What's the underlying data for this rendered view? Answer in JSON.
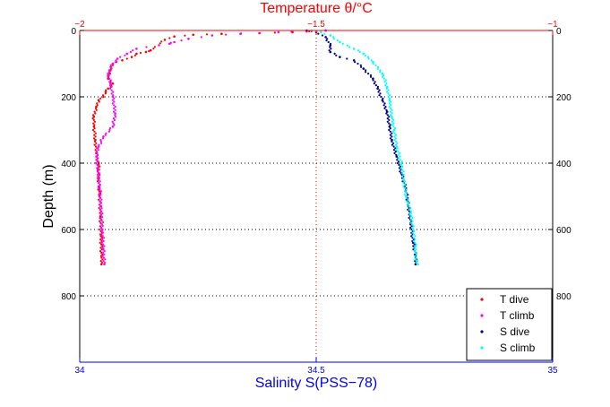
{
  "chart_data": {
    "type": "scatter",
    "title": "",
    "top_axis": {
      "label": "Temperature θ/°C",
      "range": [
        -2,
        -1
      ],
      "ticks": [
        -2,
        -1.5,
        -1
      ],
      "tick_labels": [
        "−2",
        "−1.5",
        "−1"
      ],
      "color": "#ff0000"
    },
    "bottom_axis": {
      "label": "Salinity S(PSS−78)",
      "range": [
        34,
        35
      ],
      "ticks": [
        34,
        34.5,
        35
      ],
      "tick_labels": [
        "34",
        "34.5",
        "35"
      ],
      "color": "#0000ff"
    },
    "y_axis": {
      "label": "Depth (m)",
      "range": [
        0,
        1000
      ],
      "reversed": true,
      "ticks": [
        0,
        200,
        400,
        600,
        800
      ],
      "tick_labels": [
        "0",
        "200",
        "400",
        "600",
        "800"
      ],
      "right_tick_labels": [
        "0",
        "200",
        "400",
        "600",
        "800"
      ]
    },
    "grid": true,
    "legend_position": "bottom-right",
    "series": [
      {
        "name": "T dive",
        "axis": "top",
        "color": "#ff0000",
        "points": [
          [
            -1.48,
            0
          ],
          [
            -1.55,
            5
          ],
          [
            -1.62,
            8
          ],
          [
            -1.7,
            10
          ],
          [
            -1.76,
            13
          ],
          [
            -1.8,
            18
          ],
          [
            -1.82,
            28
          ],
          [
            -1.85,
            60
          ],
          [
            -1.86,
            65
          ],
          [
            -1.88,
            70
          ],
          [
            -1.89,
            80
          ],
          [
            -1.91,
            90
          ],
          [
            -1.93,
            100
          ],
          [
            -1.935,
            120
          ],
          [
            -1.94,
            145
          ],
          [
            -1.93,
            160
          ],
          [
            -1.94,
            175
          ],
          [
            -1.945,
            185
          ],
          [
            -1.95,
            200
          ],
          [
            -1.96,
            210
          ],
          [
            -1.965,
            230
          ],
          [
            -1.97,
            260
          ],
          [
            -1.97,
            290
          ],
          [
            -1.967,
            330
          ],
          [
            -1.965,
            370
          ],
          [
            -1.96,
            400
          ],
          [
            -1.96,
            450
          ],
          [
            -1.958,
            500
          ],
          [
            -1.956,
            560
          ],
          [
            -1.955,
            620
          ],
          [
            -1.954,
            680
          ],
          [
            -1.954,
            705
          ]
        ]
      },
      {
        "name": "T climb",
        "axis": "top",
        "color": "#ff00ff",
        "points": [
          [
            -1.48,
            0
          ],
          [
            -1.52,
            3
          ],
          [
            -1.58,
            5
          ],
          [
            -1.66,
            10
          ],
          [
            -1.72,
            15
          ],
          [
            -1.77,
            25
          ],
          [
            -1.8,
            35
          ],
          [
            -1.81,
            40
          ],
          [
            -1.88,
            55
          ],
          [
            -1.9,
            70
          ],
          [
            -1.92,
            85
          ],
          [
            -1.93,
            100
          ],
          [
            -1.94,
            130
          ],
          [
            -1.935,
            160
          ],
          [
            -1.93,
            200
          ],
          [
            -1.925,
            250
          ],
          [
            -1.93,
            290
          ],
          [
            -1.95,
            320
          ],
          [
            -1.96,
            350
          ],
          [
            -1.965,
            380
          ],
          [
            -1.962,
            420
          ],
          [
            -1.958,
            470
          ],
          [
            -1.955,
            530
          ],
          [
            -1.952,
            600
          ],
          [
            -1.95,
            660
          ],
          [
            -1.948,
            705
          ]
        ]
      },
      {
        "name": "S dive",
        "axis": "bottom",
        "color": "#00008b",
        "points": [
          [
            34.48,
            0
          ],
          [
            34.5,
            5
          ],
          [
            34.52,
            20
          ],
          [
            34.53,
            45
          ],
          [
            34.53,
            65
          ],
          [
            34.55,
            80
          ],
          [
            34.58,
            90
          ],
          [
            34.6,
            115
          ],
          [
            34.62,
            145
          ],
          [
            34.63,
            175
          ],
          [
            34.64,
            210
          ],
          [
            34.65,
            245
          ],
          [
            34.655,
            290
          ],
          [
            34.66,
            330
          ],
          [
            34.67,
            380
          ],
          [
            34.68,
            430
          ],
          [
            34.69,
            480
          ],
          [
            34.695,
            530
          ],
          [
            34.7,
            580
          ],
          [
            34.705,
            640
          ],
          [
            34.71,
            680
          ],
          [
            34.71,
            705
          ]
        ]
      },
      {
        "name": "S climb",
        "axis": "bottom",
        "color": "#00ffff",
        "points": [
          [
            34.49,
            0
          ],
          [
            34.51,
            5
          ],
          [
            34.53,
            15
          ],
          [
            34.55,
            35
          ],
          [
            34.58,
            55
          ],
          [
            34.6,
            70
          ],
          [
            34.62,
            95
          ],
          [
            34.64,
            130
          ],
          [
            34.65,
            170
          ],
          [
            34.655,
            210
          ],
          [
            34.66,
            260
          ],
          [
            34.665,
            300
          ],
          [
            34.67,
            350
          ],
          [
            34.68,
            400
          ],
          [
            34.685,
            450
          ],
          [
            34.69,
            500
          ],
          [
            34.7,
            550
          ],
          [
            34.705,
            600
          ],
          [
            34.71,
            650
          ],
          [
            34.71,
            690
          ],
          [
            34.715,
            705
          ]
        ]
      }
    ]
  }
}
